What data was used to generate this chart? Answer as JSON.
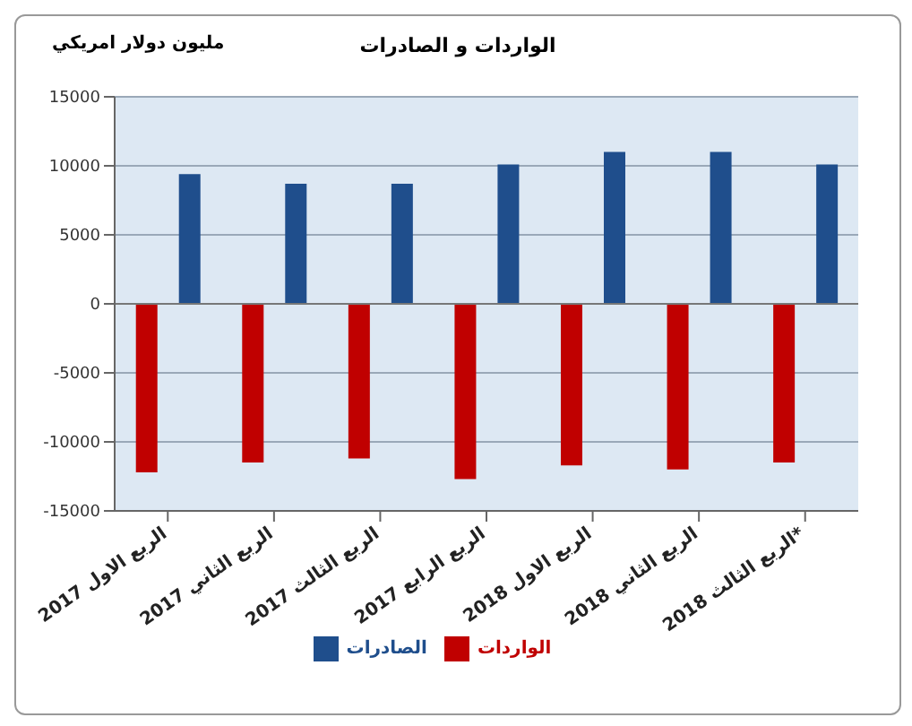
{
  "chart_data": {
    "type": "bar",
    "title": "الواردات و الصادرات",
    "ylabel": "مليون دولار امريكي",
    "categories": [
      "الربع الاول 2017",
      "الربع الثاني 2017",
      "الربع الثالث 2017",
      "الربع الرابع 2017",
      "الربع الاول 2018",
      "الربع الثاني 2018",
      "الربع الثالث 2018*"
    ],
    "series": [
      {
        "name": "الواردات",
        "color": "#c00000",
        "values": [
          -12200,
          -11500,
          -11200,
          -12700,
          -11700,
          -12000,
          -11500
        ]
      },
      {
        "name": "الصادرات",
        "color": "#1f4e8c",
        "values": [
          9400,
          8700,
          8700,
          10100,
          11000,
          11000,
          10100
        ]
      }
    ],
    "ylim": [
      -15000,
      15000
    ],
    "yticks": [
      -15000,
      -10000,
      -5000,
      0,
      5000,
      10000,
      15000
    ],
    "grid": "y",
    "legend": "bottom"
  }
}
